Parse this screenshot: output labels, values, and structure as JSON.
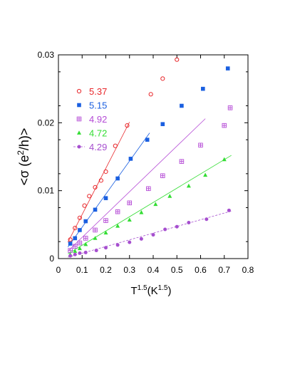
{
  "chart_data": {
    "type": "scatter",
    "xlabel": {
      "base": "T",
      "exp": "1.5",
      "unit_base": "(K",
      "unit_exp": "1.5",
      "unit_close": ")"
    },
    "ylabel": {
      "prefix": "<σ (e",
      "exp": "2",
      "suffix": "/h)>"
    },
    "xlim": [
      0,
      0.8
    ],
    "ylim": [
      0,
      0.03
    ],
    "x_ticks": [
      0,
      0.1,
      0.2,
      0.3,
      0.4,
      0.5,
      0.6,
      0.7,
      0.8
    ],
    "x_tick_labels": [
      "0",
      "0.1",
      "0.2",
      "0.3",
      "0.4",
      "0.5",
      "0.6",
      "0.7",
      "0.8"
    ],
    "y_ticks": [
      0,
      0.01,
      0.02,
      0.03
    ],
    "y_tick_labels": [
      "0",
      "0.01",
      "0.02",
      "0.03"
    ],
    "grid": false,
    "legend_position": "top-left",
    "series": [
      {
        "name": "5.37",
        "color": "#e8262a",
        "marker": "open-circle",
        "points": [
          [
            0.05,
            0.0028
          ],
          [
            0.07,
            0.0045
          ],
          [
            0.09,
            0.006
          ],
          [
            0.11,
            0.0078
          ],
          [
            0.13,
            0.0092
          ],
          [
            0.155,
            0.0105
          ],
          [
            0.18,
            0.0115
          ],
          [
            0.2,
            0.0128
          ],
          [
            0.24,
            0.0166
          ],
          [
            0.29,
            0.0196
          ],
          [
            0.39,
            0.0242
          ],
          [
            0.44,
            0.0265
          ],
          [
            0.5,
            0.0293
          ]
        ],
        "fit": [
          [
            0.04,
            0.0024
          ],
          [
            0.3,
            0.0201
          ]
        ]
      },
      {
        "name": "5.15",
        "color": "#1a5fe0",
        "marker": "filled-square",
        "points": [
          [
            0.05,
            0.0022
          ],
          [
            0.07,
            0.003
          ],
          [
            0.09,
            0.0042
          ],
          [
            0.115,
            0.0055
          ],
          [
            0.155,
            0.0072
          ],
          [
            0.2,
            0.0089
          ],
          [
            0.25,
            0.0118
          ],
          [
            0.305,
            0.0147
          ],
          [
            0.375,
            0.0175
          ],
          [
            0.44,
            0.0198
          ],
          [
            0.52,
            0.0225
          ],
          [
            0.61,
            0.025
          ],
          [
            0.715,
            0.028
          ]
        ],
        "fit": [
          [
            0.04,
            0.0017
          ],
          [
            0.385,
            0.0185
          ]
        ]
      },
      {
        "name": "4.92",
        "color": "#b54bd6",
        "marker": "boxed-plus",
        "points": [
          [
            0.05,
            0.0012
          ],
          [
            0.07,
            0.0018
          ],
          [
            0.09,
            0.0023
          ],
          [
            0.115,
            0.003
          ],
          [
            0.155,
            0.0042
          ],
          [
            0.2,
            0.0056
          ],
          [
            0.25,
            0.0069
          ],
          [
            0.3,
            0.0082
          ],
          [
            0.38,
            0.0103
          ],
          [
            0.44,
            0.0122
          ],
          [
            0.52,
            0.0143
          ],
          [
            0.6,
            0.0167
          ],
          [
            0.7,
            0.0196
          ],
          [
            0.725,
            0.0222
          ]
        ],
        "fit": [
          [
            0.04,
            0.0011
          ],
          [
            0.62,
            0.0206
          ]
        ]
      },
      {
        "name": "4.72",
        "color": "#33dd33",
        "marker": "filled-triangle",
        "points": [
          [
            0.05,
            0.0006
          ],
          [
            0.07,
            0.0011
          ],
          [
            0.09,
            0.0015
          ],
          [
            0.115,
            0.0021
          ],
          [
            0.155,
            0.003
          ],
          [
            0.2,
            0.0038
          ],
          [
            0.25,
            0.0048
          ],
          [
            0.3,
            0.0057
          ],
          [
            0.35,
            0.0068
          ],
          [
            0.41,
            0.008
          ],
          [
            0.47,
            0.0092
          ],
          [
            0.55,
            0.0107
          ],
          [
            0.62,
            0.0123
          ],
          [
            0.7,
            0.0146
          ]
        ],
        "fit": [
          [
            0.04,
            0.0007
          ],
          [
            0.73,
            0.0152
          ]
        ]
      },
      {
        "name": "4.29",
        "color": "#a64fcf",
        "marker": "filled-circle",
        "points": [
          [
            0.05,
            0.0004
          ],
          [
            0.07,
            0.0006
          ],
          [
            0.09,
            0.0008
          ],
          [
            0.115,
            0.0009
          ],
          [
            0.16,
            0.0012
          ],
          [
            0.2,
            0.0016
          ],
          [
            0.25,
            0.002
          ],
          [
            0.3,
            0.0024
          ],
          [
            0.35,
            0.0029
          ],
          [
            0.4,
            0.0035
          ],
          [
            0.45,
            0.0043
          ],
          [
            0.5,
            0.0047
          ],
          [
            0.55,
            0.0053
          ],
          [
            0.625,
            0.0058
          ],
          [
            0.72,
            0.0071
          ]
        ],
        "fit": [
          [
            0.04,
            0.0002
          ],
          [
            0.73,
            0.007
          ]
        ],
        "fit_dashed": true
      }
    ]
  }
}
